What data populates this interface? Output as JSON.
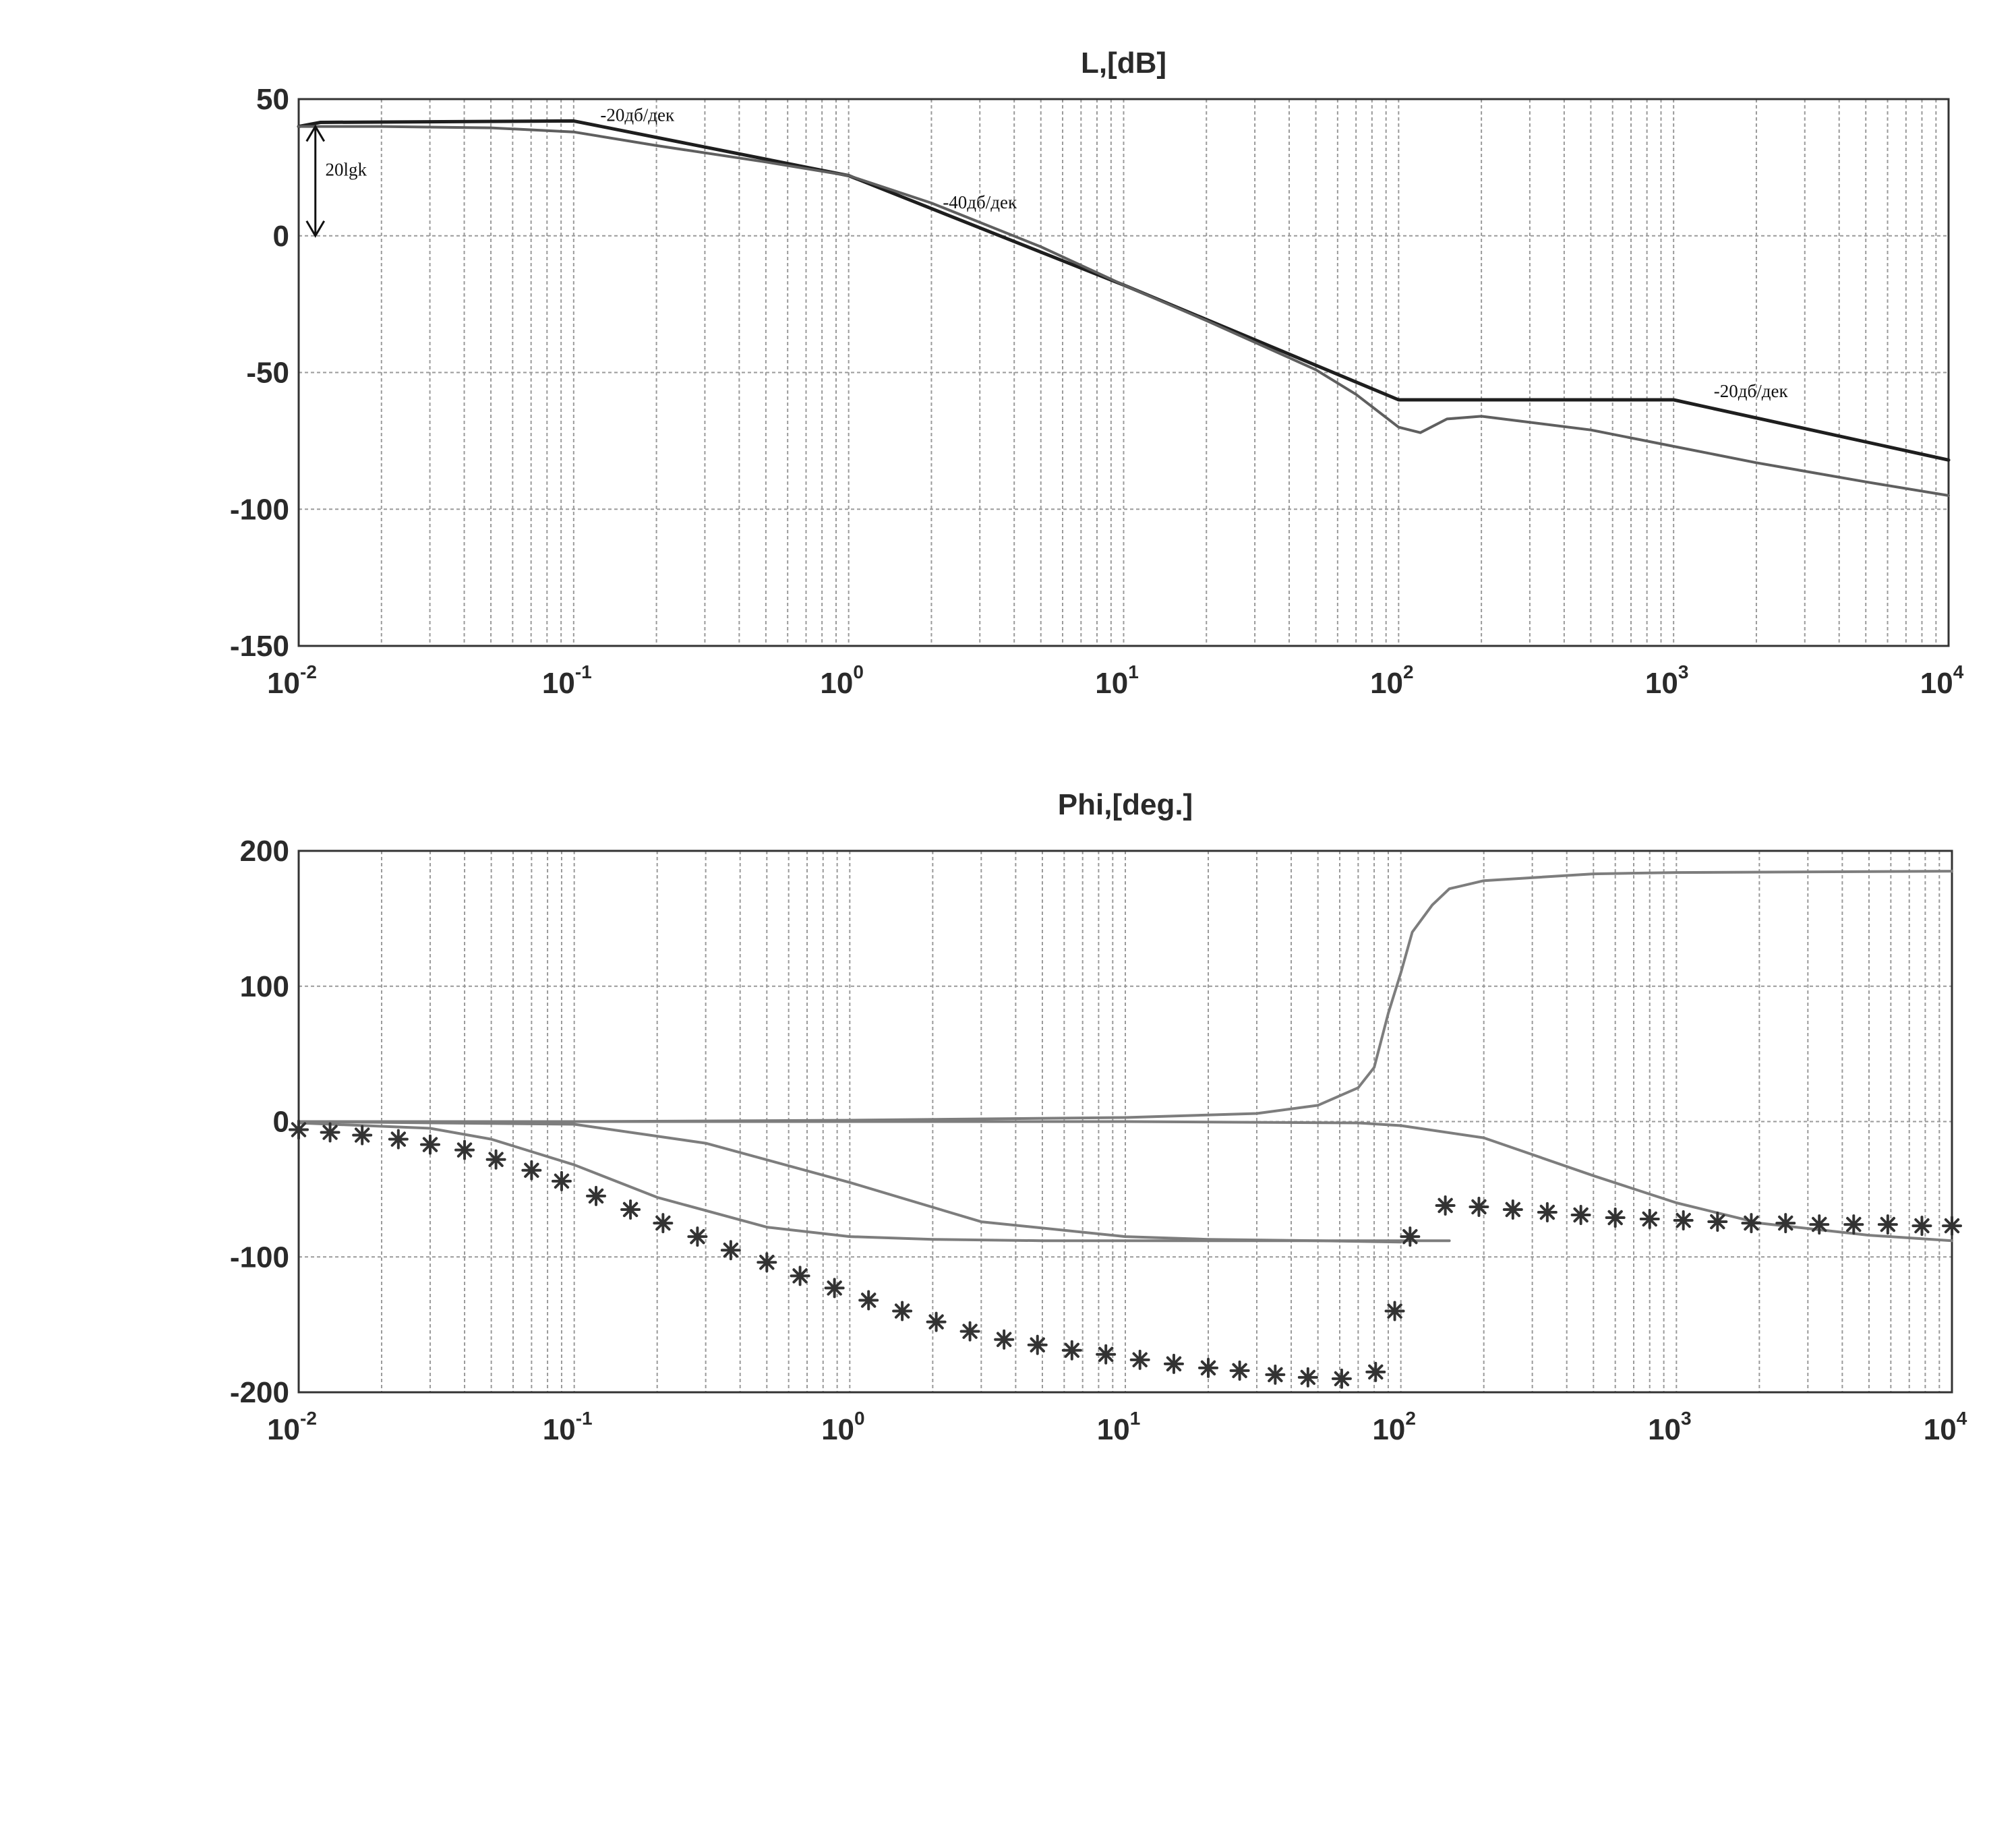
{
  "chart_data": [
    {
      "type": "line",
      "title": "L,[dB]",
      "xscale": "log",
      "xlim": [
        0.01,
        10000
      ],
      "ylim": [
        -150,
        50
      ],
      "x_ticks": [
        {
          "base": "10",
          "exp": "-2",
          "value": 0.01
        },
        {
          "base": "10",
          "exp": "-1",
          "value": 0.1
        },
        {
          "base": "10",
          "exp": "0",
          "value": 1
        },
        {
          "base": "10",
          "exp": "1",
          "value": 10
        },
        {
          "base": "10",
          "exp": "2",
          "value": 100
        },
        {
          "base": "10",
          "exp": "3",
          "value": 1000
        },
        {
          "base": "10",
          "exp": "4",
          "value": 10000
        }
      ],
      "y_ticks": [
        "50",
        "0",
        "-50",
        "-100",
        "-150"
      ],
      "y_tick_values": [
        50,
        0,
        -50,
        -100,
        -150
      ],
      "grid": true,
      "series": [
        {
          "color": "#1e1e1e",
          "x": [
            0.01,
            0.012,
            0.1,
            1,
            10,
            100,
            1000,
            10000
          ],
          "y": [
            40,
            41.5,
            42,
            22,
            -18,
            -60,
            -60,
            -82
          ]
        },
        {
          "color": "#5f5f5f",
          "x": [
            0.01,
            0.02,
            0.05,
            0.1,
            0.2,
            0.5,
            1,
            2,
            5,
            10,
            20,
            50,
            70,
            100,
            120,
            150,
            200,
            500,
            1000,
            2000,
            5000,
            10000
          ],
          "y": [
            40,
            40,
            39.5,
            38,
            33,
            27,
            22,
            12,
            -4,
            -18,
            -31,
            -49,
            -58,
            -70,
            -72,
            -67,
            -66,
            -71,
            -77,
            -83,
            -90,
            -95
          ]
        }
      ],
      "annotations": [
        {
          "text": "-20дб/дек",
          "x": 0.125,
          "y": 42
        },
        {
          "text": "-40дб/дек",
          "x": 2.2,
          "y": 10
        },
        {
          "text": "-20дб/дек",
          "x": 1400,
          "y": -59
        },
        {
          "text": "20lgk",
          "x": 0.0125,
          "y": 22
        }
      ],
      "arrow": {
        "x": 0.0115,
        "y_from": 0,
        "y_to": 40
      }
    },
    {
      "type": "line",
      "title": "Phi,[deg.]",
      "xscale": "log",
      "xlim": [
        0.01,
        10000
      ],
      "ylim": [
        -200,
        200
      ],
      "x_ticks": [
        {
          "base": "10",
          "exp": "-2",
          "value": 0.01
        },
        {
          "base": "10",
          "exp": "-1",
          "value": 0.1
        },
        {
          "base": "10",
          "exp": "0",
          "value": 1
        },
        {
          "base": "10",
          "exp": "1",
          "value": 10
        },
        {
          "base": "10",
          "exp": "2",
          "value": 100
        },
        {
          "base": "10",
          "exp": "3",
          "value": 1000
        },
        {
          "base": "10",
          "exp": "4",
          "value": 10000
        }
      ],
      "y_ticks": [
        "200",
        "100",
        "0",
        "-100",
        "-200"
      ],
      "y_tick_values": [
        200,
        100,
        0,
        -100,
        -200
      ],
      "grid": true,
      "series": [
        {
          "color": "#7d7d7d",
          "x": [
            0.01,
            0.1,
            1,
            10,
            30,
            50,
            70,
            80,
            90,
            100,
            110,
            130,
            150,
            200,
            500,
            1000,
            10000
          ],
          "y": [
            0,
            0,
            1,
            3,
            6,
            12,
            25,
            40,
            80,
            110,
            140,
            160,
            172,
            178,
            183,
            184,
            185
          ]
        },
        {
          "color": "#7d7d7d",
          "x": [
            0.01,
            0.03,
            0.05,
            0.1,
            0.2,
            0.5,
            1,
            2,
            5,
            10,
            100,
            150
          ],
          "y": [
            -1,
            -5,
            -13,
            -32,
            -56,
            -78,
            -85,
            -87,
            -88,
            -88,
            -88,
            -88
          ]
        },
        {
          "color": "#7d7d7d",
          "x": [
            0.01,
            0.1,
            0.3,
            1,
            3,
            10,
            20,
            50,
            100
          ],
          "y": [
            0,
            -2,
            -16,
            -45,
            -74,
            -85,
            -87,
            -88,
            -89
          ]
        },
        {
          "color": "#7d7d7d",
          "x": [
            0.01,
            10,
            70,
            100,
            200,
            500,
            1000,
            2000,
            5000,
            10000
          ],
          "y": [
            0,
            0,
            -1,
            -3,
            -12,
            -40,
            -60,
            -75,
            -84,
            -88
          ]
        },
        {
          "marker": "*",
          "color": "#333333",
          "x": [
            0.01,
            0.013,
            0.017,
            0.023,
            0.03,
            0.04,
            0.052,
            0.07,
            0.09,
            0.12,
            0.16,
            0.21,
            0.28,
            0.37,
            0.5,
            0.66,
            0.88,
            1.17,
            1.55,
            2.06,
            2.73,
            3.63,
            4.8,
            6.4,
            8.5,
            11.3,
            15,
            20,
            26,
            35,
            46,
            61,
            81,
            95,
            108,
            145,
            192,
            255,
            340,
            450,
            600,
            800,
            1060,
            1410,
            1870,
            2490,
            3300,
            4400,
            5850,
            7780,
            10000
          ],
          "y": [
            -6,
            -8,
            -10,
            -13,
            -17,
            -21,
            -28,
            -36,
            -44,
            -55,
            -65,
            -75,
            -85,
            -95,
            -104,
            -114,
            -123,
            -132,
            -140,
            -148,
            -155,
            -161,
            -165,
            -169,
            -172,
            -176,
            -179,
            -182,
            -184,
            -187,
            -189,
            -190,
            -185,
            -140,
            -85,
            -62,
            -63,
            -65,
            -67,
            -69,
            -71,
            -72,
            -73,
            -74,
            -75,
            -75,
            -76,
            -76,
            -76,
            -77,
            -77
          ]
        }
      ]
    }
  ]
}
